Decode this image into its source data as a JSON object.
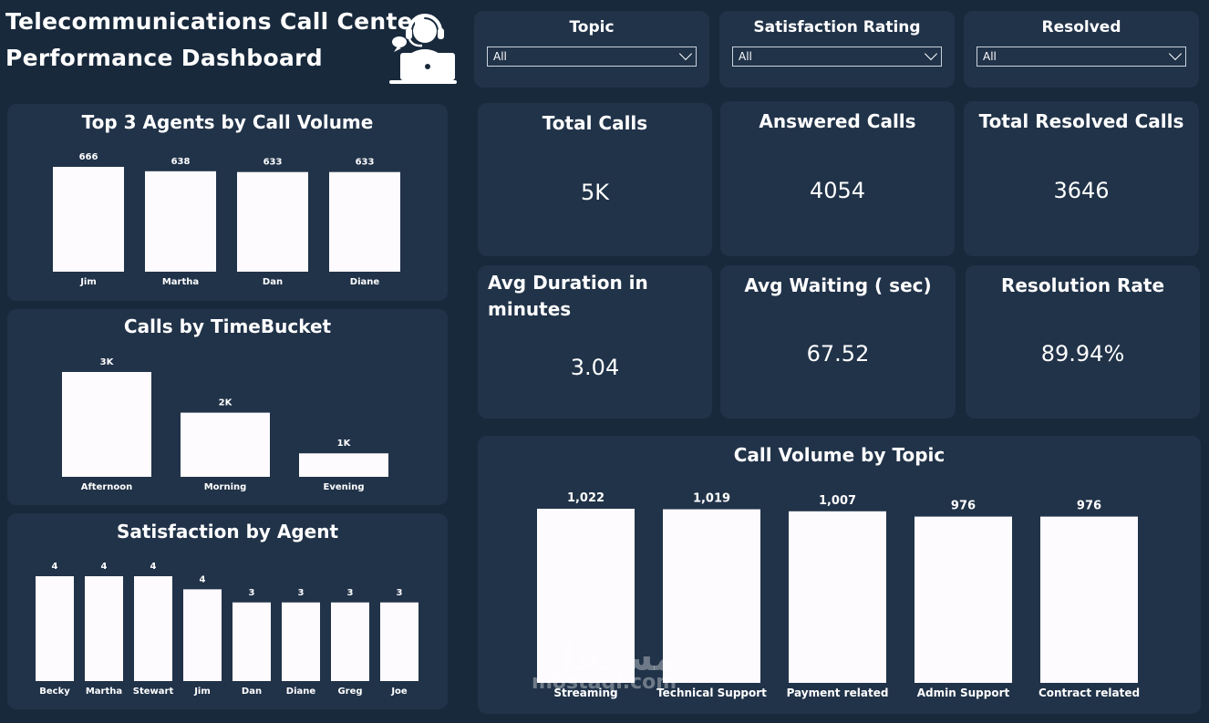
{
  "header": {
    "title_line1": "Telecommunications Call Center",
    "title_line2": "Performance Dashboard",
    "icon": "call-center-agent-icon"
  },
  "slicers": [
    {
      "label": "Topic",
      "value": "All"
    },
    {
      "label": "Satisfaction Rating",
      "value": "All"
    },
    {
      "label": "Resolved",
      "value": "All"
    }
  ],
  "kpis": [
    {
      "label": "Total Calls",
      "value": "5K"
    },
    {
      "label": "Answered Calls",
      "value": "4054"
    },
    {
      "label": "Total Resolved Calls",
      "value": "3646"
    },
    {
      "label": "Avg Duration in minutes",
      "value": "3.04"
    },
    {
      "label": "Avg Waiting ( sec)",
      "value": "67.52"
    },
    {
      "label": "Resolution Rate",
      "value": "89.94%"
    }
  ],
  "watermark": {
    "arabic": "مستقل",
    "latin": "mostaql.com"
  },
  "colors": {
    "background": "#18293c",
    "panel": "#213349",
    "bar": "#fdfbfd",
    "text": "#ffffff"
  },
  "chart_data": [
    {
      "type": "bar",
      "title": "Top 3 Agents by Call Volume",
      "categories": [
        "Jim",
        "Martha",
        "Dan",
        "Diane"
      ],
      "values": [
        666,
        638,
        633,
        633
      ],
      "labels": [
        "666",
        "638",
        "633",
        "633"
      ]
    },
    {
      "type": "bar",
      "title": "Calls by TimeBucket",
      "categories": [
        "Afternoon",
        "Morning",
        "Evening"
      ],
      "values": [
        2500,
        1530,
        560
      ],
      "labels": [
        "3K",
        "2K",
        "1K"
      ]
    },
    {
      "type": "bar",
      "title": "Satisfaction by Agent",
      "categories": [
        "Becky",
        "Martha",
        "Stewart",
        "Jim",
        "Dan",
        "Diane",
        "Greg",
        "Joe"
      ],
      "values": [
        4,
        4,
        4,
        3.5,
        3,
        3,
        3,
        3
      ],
      "labels": [
        "4",
        "4",
        "4",
        "4",
        "3",
        "3",
        "3",
        "3"
      ]
    },
    {
      "type": "bar",
      "title": "Call Volume by Topic",
      "categories": [
        "Streaming",
        "Technical Support",
        "Payment related",
        "Admin Support",
        "Contract related"
      ],
      "values": [
        1022,
        1019,
        1007,
        976,
        976
      ],
      "labels": [
        "1,022",
        "1,019",
        "1,007",
        "976",
        "976"
      ]
    }
  ]
}
